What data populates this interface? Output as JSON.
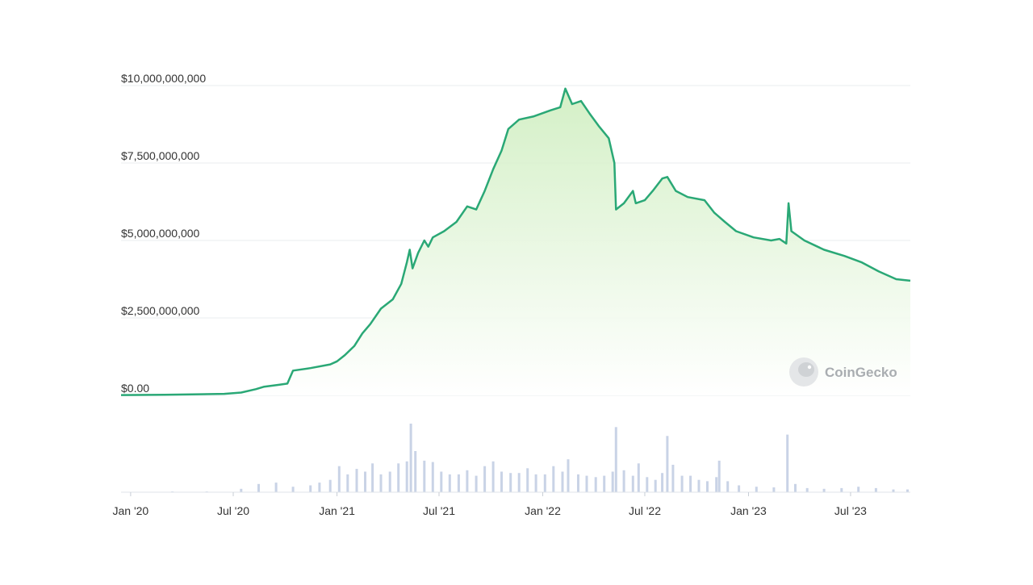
{
  "colors": {
    "line": "#2aa876",
    "fill_top": "#cfeec0",
    "fill_bottom": "#ffffff",
    "volume": "#c9d3e6",
    "grid": "#e8ecef",
    "text": "#333333",
    "watermark": "#a9adb1"
  },
  "watermark": {
    "text": "CoinGecko",
    "icon": "gecko-logo-icon"
  },
  "chart_data": {
    "type": "area",
    "title": "",
    "xlabel": "",
    "ylabel": "",
    "grid": true,
    "x_range": [
      "2019-12-15",
      "2023-10-15"
    ],
    "ylim": [
      0,
      10000000000
    ],
    "yticks": [
      0,
      2500000000,
      5000000000,
      7500000000,
      10000000000
    ],
    "ytick_labels": [
      "$0.00",
      "$2,500,000,000",
      "$5,000,000,000",
      "$7,500,000,000",
      "$10,000,000,000"
    ],
    "xticks": [
      "2020-01-01",
      "2020-07-01",
      "2021-01-01",
      "2021-07-01",
      "2022-01-01",
      "2022-07-01",
      "2023-01-01",
      "2023-07-01"
    ],
    "xtick_labels": [
      "Jan '20",
      "Jul '20",
      "Jan '21",
      "Jul '21",
      "Jan '22",
      "Jul '22",
      "Jan '23",
      "Jul '23"
    ],
    "series": [
      {
        "values": [
          [
            "2019-12-15",
            10000000
          ],
          [
            "2020-03-01",
            20000000
          ],
          [
            "2020-06-15",
            50000000
          ],
          [
            "2020-07-15",
            90000000
          ],
          [
            "2020-08-10",
            200000000
          ],
          [
            "2020-08-25",
            280000000
          ],
          [
            "2020-09-20",
            340000000
          ],
          [
            "2020-10-05",
            380000000
          ],
          [
            "2020-10-15",
            800000000
          ],
          [
            "2020-11-15",
            880000000
          ],
          [
            "2020-12-20",
            1000000000
          ],
          [
            "2021-01-01",
            1100000000
          ],
          [
            "2021-01-15",
            1300000000
          ],
          [
            "2021-02-01",
            1600000000
          ],
          [
            "2021-02-15",
            2000000000
          ],
          [
            "2021-03-01",
            2300000000
          ],
          [
            "2021-03-20",
            2800000000
          ],
          [
            "2021-04-10",
            3100000000
          ],
          [
            "2021-04-25",
            3600000000
          ],
          [
            "2021-05-05",
            4300000000
          ],
          [
            "2021-05-10",
            4700000000
          ],
          [
            "2021-05-15",
            4100000000
          ],
          [
            "2021-05-25",
            4600000000
          ],
          [
            "2021-06-05",
            5000000000
          ],
          [
            "2021-06-12",
            4800000000
          ],
          [
            "2021-06-20",
            5100000000
          ],
          [
            "2021-07-10",
            5300000000
          ],
          [
            "2021-08-01",
            5600000000
          ],
          [
            "2021-08-20",
            6100000000
          ],
          [
            "2021-09-05",
            6000000000
          ],
          [
            "2021-09-20",
            6600000000
          ],
          [
            "2021-10-05",
            7300000000
          ],
          [
            "2021-10-20",
            7900000000
          ],
          [
            "2021-11-01",
            8600000000
          ],
          [
            "2021-11-20",
            8900000000
          ],
          [
            "2021-12-15",
            9000000000
          ],
          [
            "2022-01-15",
            9200000000
          ],
          [
            "2022-02-01",
            9300000000
          ],
          [
            "2022-02-10",
            9900000000
          ],
          [
            "2022-02-22",
            9400000000
          ],
          [
            "2022-03-10",
            9500000000
          ],
          [
            "2022-03-25",
            9100000000
          ],
          [
            "2022-04-10",
            8700000000
          ],
          [
            "2022-04-28",
            8300000000
          ],
          [
            "2022-05-08",
            7500000000
          ],
          [
            "2022-05-11",
            6000000000
          ],
          [
            "2022-05-25",
            6200000000
          ],
          [
            "2022-06-10",
            6600000000
          ],
          [
            "2022-06-15",
            6200000000
          ],
          [
            "2022-07-01",
            6300000000
          ],
          [
            "2022-07-15",
            6600000000
          ],
          [
            "2022-08-01",
            7000000000
          ],
          [
            "2022-08-10",
            7050000000
          ],
          [
            "2022-08-25",
            6600000000
          ],
          [
            "2022-09-15",
            6400000000
          ],
          [
            "2022-10-15",
            6300000000
          ],
          [
            "2022-11-01",
            5900000000
          ],
          [
            "2022-11-20",
            5600000000
          ],
          [
            "2022-12-10",
            5300000000
          ],
          [
            "2023-01-10",
            5100000000
          ],
          [
            "2023-02-10",
            5000000000
          ],
          [
            "2023-02-25",
            5050000000
          ],
          [
            "2023-03-09",
            4900000000
          ],
          [
            "2023-03-13",
            6200000000
          ],
          [
            "2023-03-18",
            5300000000
          ],
          [
            "2023-04-10",
            5000000000
          ],
          [
            "2023-05-15",
            4700000000
          ],
          [
            "2023-06-20",
            4500000000
          ],
          [
            "2023-07-20",
            4300000000
          ],
          [
            "2023-08-20",
            4000000000
          ],
          [
            "2023-09-20",
            3750000000
          ],
          [
            "2023-10-15",
            3700000000
          ]
        ]
      }
    ],
    "volume": [
      [
        "2020-01-15",
        0.5
      ],
      [
        "2020-03-15",
        1
      ],
      [
        "2020-05-15",
        1
      ],
      [
        "2020-07-15",
        5
      ],
      [
        "2020-08-15",
        12
      ],
      [
        "2020-09-15",
        14
      ],
      [
        "2020-10-15",
        8
      ],
      [
        "2020-11-15",
        10
      ],
      [
        "2020-12-01",
        14
      ],
      [
        "2020-12-20",
        18
      ],
      [
        "2021-01-05",
        38
      ],
      [
        "2021-01-20",
        26
      ],
      [
        "2021-02-05",
        34
      ],
      [
        "2021-02-20",
        30
      ],
      [
        "2021-03-05",
        42
      ],
      [
        "2021-03-20",
        26
      ],
      [
        "2021-04-05",
        30
      ],
      [
        "2021-04-20",
        42
      ],
      [
        "2021-05-05",
        45
      ],
      [
        "2021-05-12",
        100
      ],
      [
        "2021-05-20",
        60
      ],
      [
        "2021-06-05",
        46
      ],
      [
        "2021-06-20",
        44
      ],
      [
        "2021-07-05",
        30
      ],
      [
        "2021-07-20",
        26
      ],
      [
        "2021-08-05",
        26
      ],
      [
        "2021-08-20",
        32
      ],
      [
        "2021-09-05",
        24
      ],
      [
        "2021-09-20",
        38
      ],
      [
        "2021-10-05",
        45
      ],
      [
        "2021-10-20",
        30
      ],
      [
        "2021-11-05",
        28
      ],
      [
        "2021-11-20",
        28
      ],
      [
        "2021-12-05",
        35
      ],
      [
        "2021-12-20",
        26
      ],
      [
        "2022-01-05",
        26
      ],
      [
        "2022-01-20",
        38
      ],
      [
        "2022-02-05",
        30
      ],
      [
        "2022-02-15",
        48
      ],
      [
        "2022-03-05",
        26
      ],
      [
        "2022-03-20",
        24
      ],
      [
        "2022-04-05",
        22
      ],
      [
        "2022-04-20",
        24
      ],
      [
        "2022-05-05",
        30
      ],
      [
        "2022-05-11",
        95
      ],
      [
        "2022-05-25",
        32
      ],
      [
        "2022-06-10",
        24
      ],
      [
        "2022-06-20",
        42
      ],
      [
        "2022-07-05",
        22
      ],
      [
        "2022-07-20",
        18
      ],
      [
        "2022-08-01",
        28
      ],
      [
        "2022-08-10",
        82
      ],
      [
        "2022-08-20",
        40
      ],
      [
        "2022-09-05",
        24
      ],
      [
        "2022-09-20",
        24
      ],
      [
        "2022-10-05",
        18
      ],
      [
        "2022-10-20",
        16
      ],
      [
        "2022-11-05",
        22
      ],
      [
        "2022-11-10",
        46
      ],
      [
        "2022-11-25",
        16
      ],
      [
        "2022-12-15",
        10
      ],
      [
        "2023-01-15",
        8
      ],
      [
        "2023-02-15",
        7
      ],
      [
        "2023-03-11",
        84
      ],
      [
        "2023-03-25",
        12
      ],
      [
        "2023-04-15",
        6
      ],
      [
        "2023-05-15",
        5
      ],
      [
        "2023-06-15",
        6
      ],
      [
        "2023-07-15",
        8
      ],
      [
        "2023-08-15",
        6
      ],
      [
        "2023-09-15",
        4
      ],
      [
        "2023-10-10",
        4
      ]
    ]
  }
}
